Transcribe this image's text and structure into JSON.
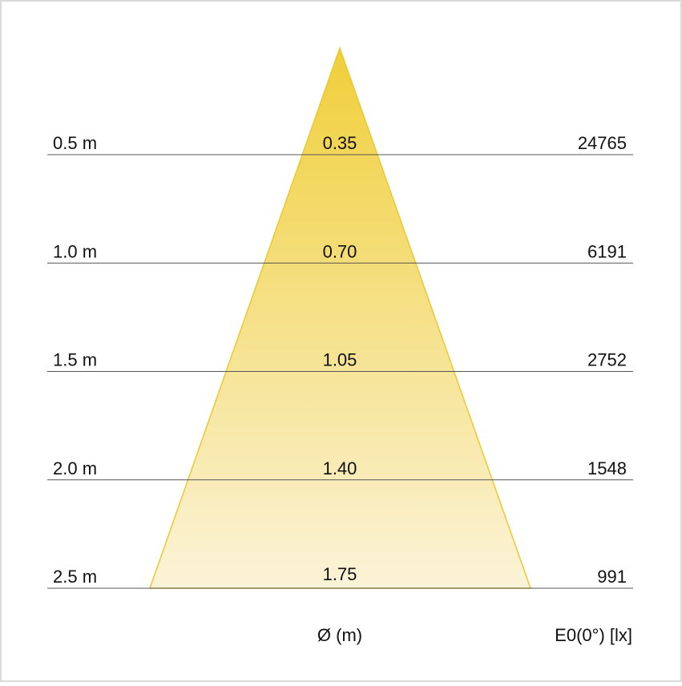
{
  "rows": [
    {
      "distance": "0.5 m",
      "diameter": "0.35",
      "illuminance": "24765"
    },
    {
      "distance": "1.0 m",
      "diameter": "0.70",
      "illuminance": "6191"
    },
    {
      "distance": "1.5 m",
      "diameter": "1.05",
      "illuminance": "2752"
    },
    {
      "distance": "2.0 m",
      "diameter": "1.40",
      "illuminance": "1548"
    },
    {
      "distance": "2.5 m",
      "diameter": "1.75",
      "illuminance": "991"
    }
  ],
  "footer": {
    "diameter_label": "Ø (m)",
    "illuminance_label": "E0(0°) [lx]"
  }
}
